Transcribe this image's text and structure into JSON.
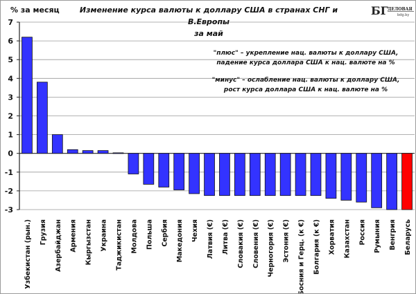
{
  "header": {
    "ylabel": "% за месяц",
    "title_line1": "Изменение  курса валюты  к доллару США в странах  СНГ и В.Европы",
    "title_line2": "за май",
    "logo_text": "ДЕЛОВАЯ ГАЗЕТА",
    "logo_mark": "БГ",
    "logo_url_text": "bdg.by"
  },
  "notes": {
    "plus_line1": "\"плюс\" – укрепление нац. валюты к доллару США,",
    "plus_line2": "падение курса доллара США к нац. валюте на %",
    "minus_line1": "\"минус\" – ослабление нац. валюты к доллару США,",
    "minus_line2": "рост курса доллара США к нац. валюте на %"
  },
  "chart_data": {
    "type": "bar",
    "title": "Изменение  курса валюты  к доллару США в странах  СНГ и В.Европы за май",
    "xlabel": "",
    "ylabel": "% за месяц",
    "ylim": [
      -3,
      7
    ],
    "yticks": [
      -3,
      -2,
      -1,
      0,
      1,
      2,
      3,
      4,
      5,
      6,
      7
    ],
    "grid": true,
    "categories": [
      "Узбекистан  (рын.)",
      "Грузия",
      "Азербайджан",
      "Армения",
      "Кыргызстан",
      "Украина",
      "Таджикистан",
      "Молдова",
      "Польша",
      "Сербия",
      "Македония",
      "Чехия",
      "Латвия  (€)",
      "Литва  (€)",
      "Словакия  (€)",
      "Словения  (€)",
      "Черногория  (€)",
      "Эстония  (€)",
      "Босния  и Герц. (к €)",
      "Болгария  (к €)",
      "Хорватия",
      "Казахстан",
      "Россия",
      "Румыния",
      "Венгрия",
      "Беларусь"
    ],
    "values": [
      6.2,
      3.8,
      1.0,
      0.2,
      0.15,
      0.15,
      0.03,
      -1.1,
      -1.65,
      -1.8,
      -1.95,
      -2.15,
      -2.25,
      -2.25,
      -2.25,
      -2.25,
      -2.25,
      -2.25,
      -2.25,
      -2.25,
      -2.4,
      -2.5,
      -2.6,
      -2.9,
      -3.0,
      -3.0
    ],
    "colors": {
      "default": "#3333ff",
      "highlight": "#ff0000",
      "highlight_category": "Беларусь"
    }
  }
}
